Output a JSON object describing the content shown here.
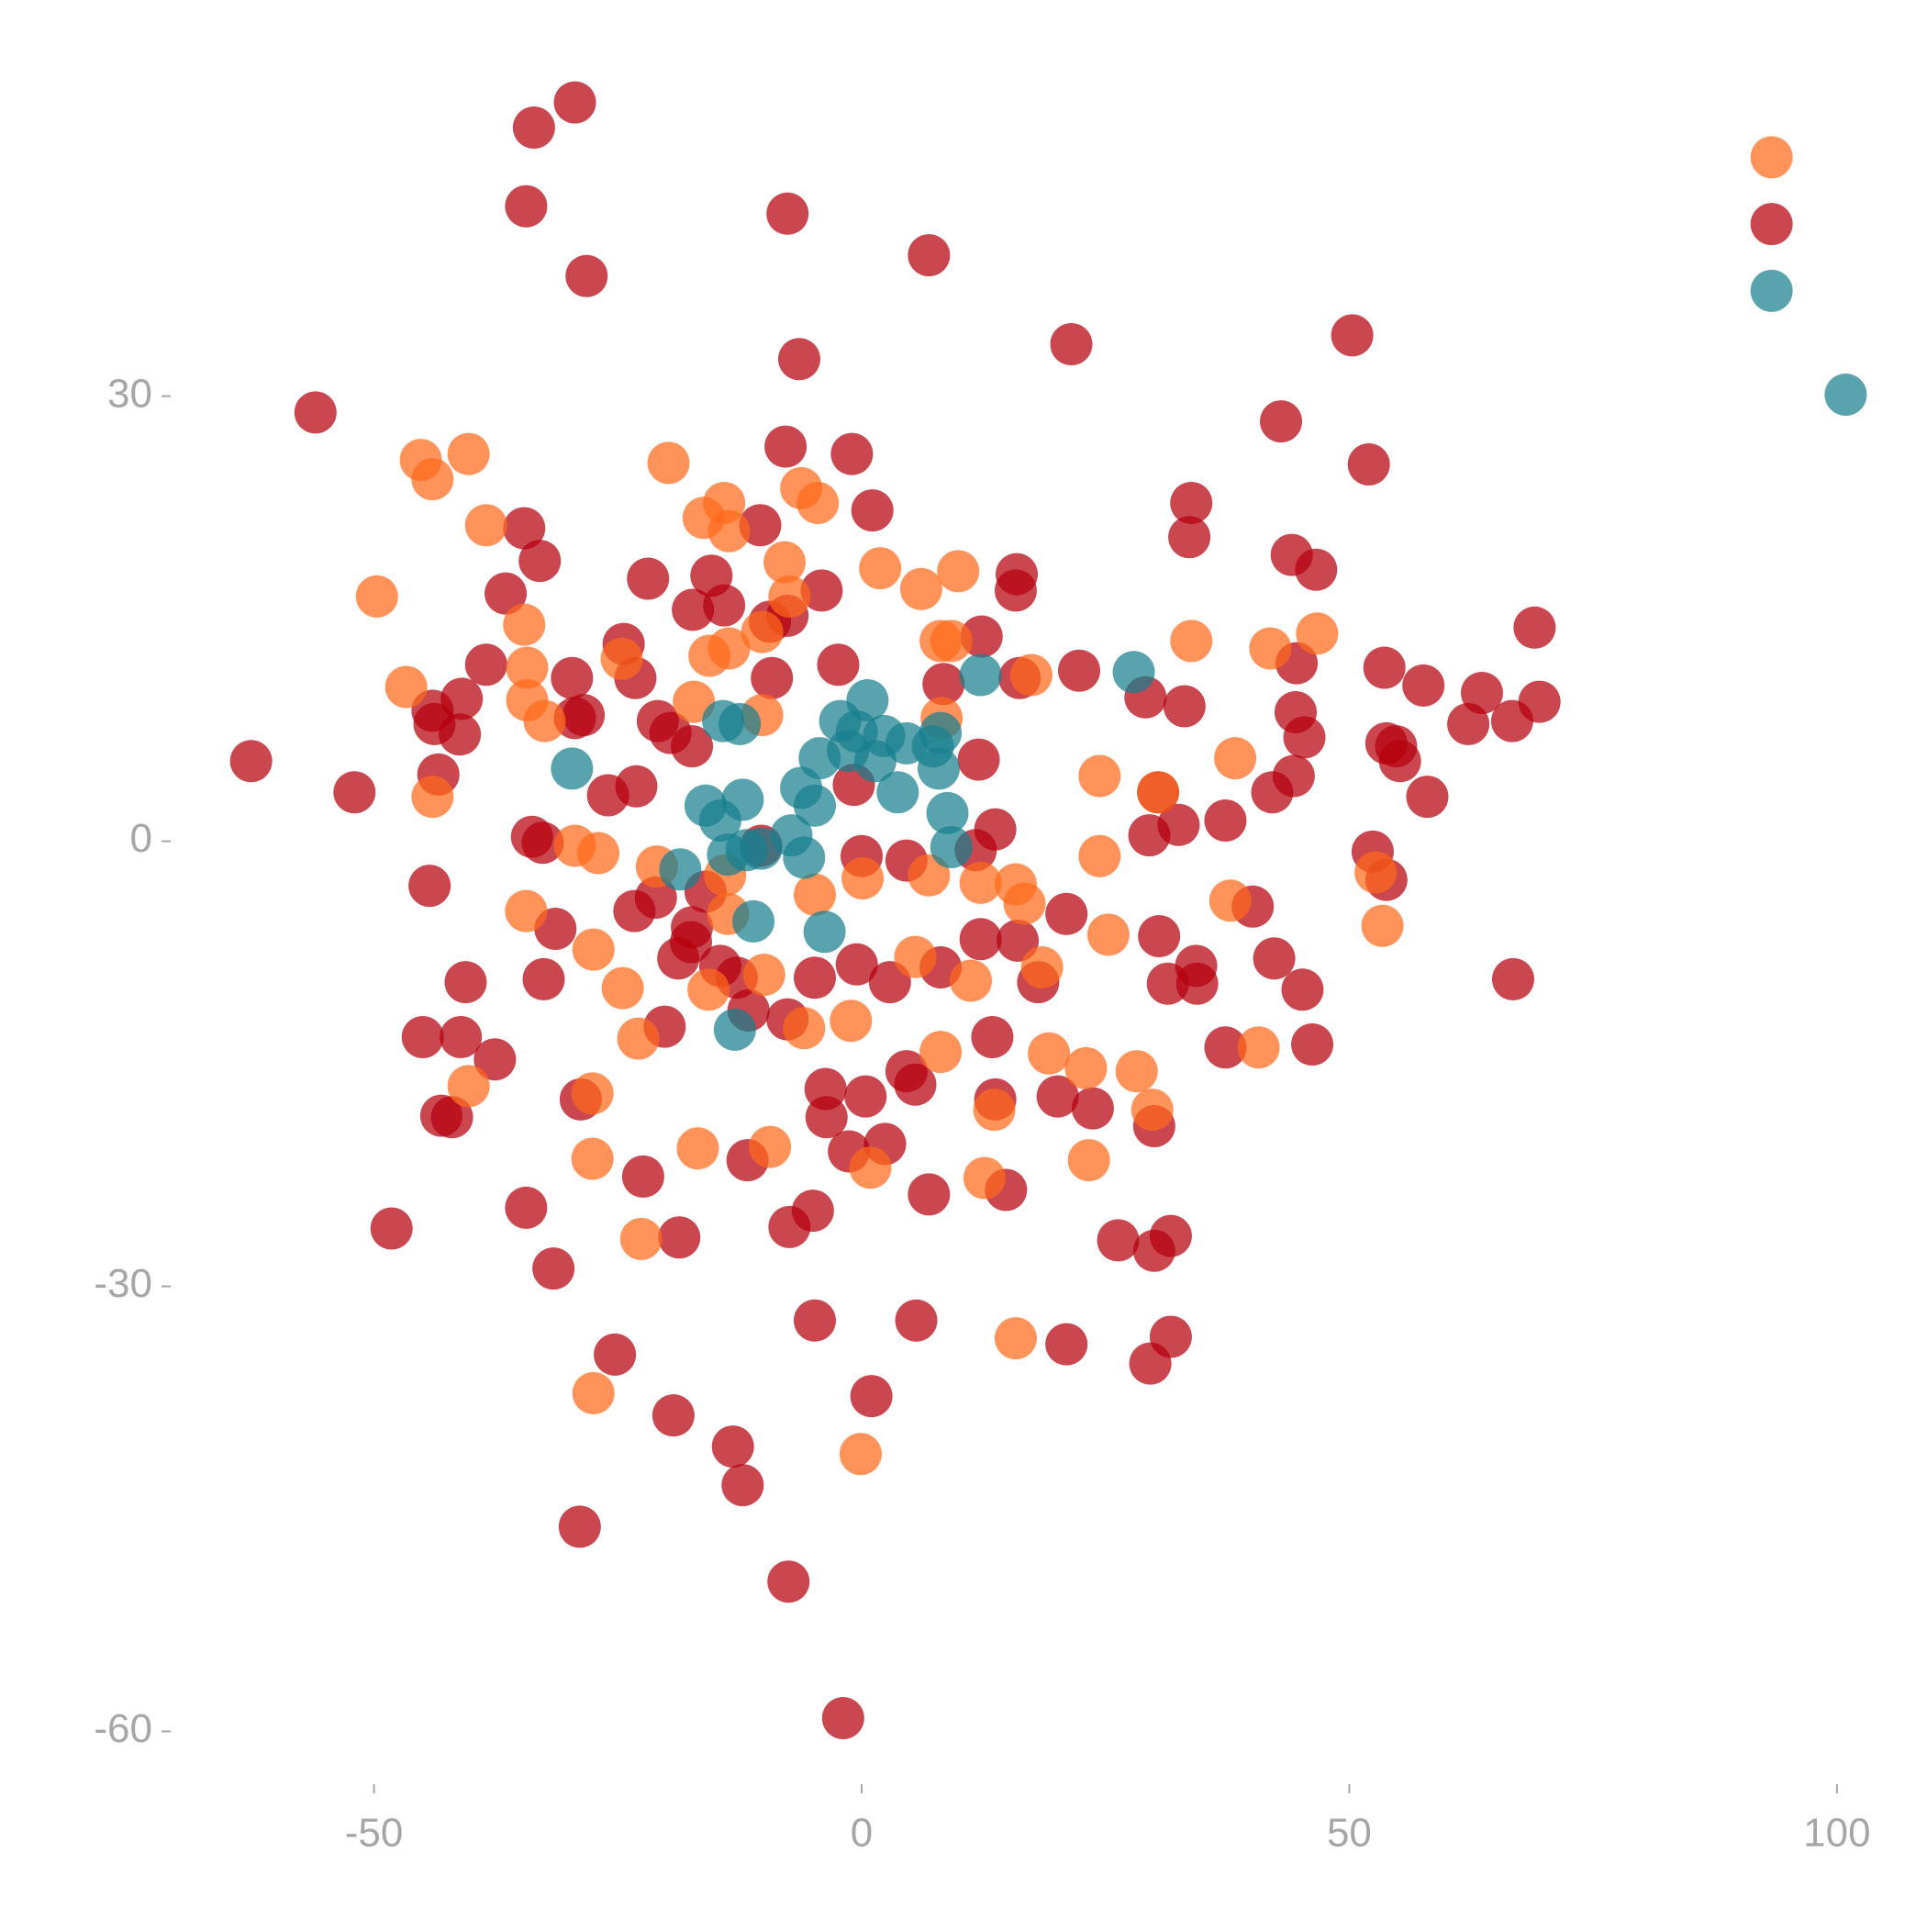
{
  "chart_data": {
    "type": "scatter",
    "xlim": [
      -70,
      105
    ],
    "ylim": [
      -63,
      52
    ],
    "xticks": [
      -50,
      0,
      50,
      100
    ],
    "yticks": [
      -60,
      -30,
      0,
      30
    ],
    "grid": false,
    "series": [
      {
        "color": "#b5000c",
        "x": [
          -29.4,
          -33.6,
          -34.4,
          -7.6,
          -28.2,
          6.9,
          21.5,
          -6.4,
          -56,
          50.3,
          43,
          52,
          93.3,
          -7.8,
          -1,
          1.1,
          33.8,
          33.6,
          -10.4,
          -34.6,
          -33,
          44.1,
          46.6,
          15.9,
          15.8,
          -21.9,
          -36.5,
          -15.4,
          -14.1,
          -17.3,
          -4.1,
          -7.6,
          -9.4,
          69,
          12.3,
          -24.4,
          -38.5,
          -2.4,
          -29.7,
          -23.2,
          -9.2,
          22.3,
          44.6,
          53.6,
          57.6,
          63.6,
          69.5,
          66.7,
          62.2,
          33.1,
          29.1,
          8.4,
          16.2,
          -44,
          -41,
          -43.8,
          -41.2,
          -29.4,
          -28.5,
          -20.9,
          -19.6,
          -17.4,
          44.5,
          45.4,
          53.8,
          54.8,
          55.2,
          12,
          58,
          44.3,
          42.1,
          -62.6,
          -52,
          -43.4,
          -26,
          -23.1,
          -0.8,
          30.4,
          32.5,
          29.5,
          37.3,
          13.7,
          11.7,
          52.4,
          53.8,
          -33.8,
          -32.7,
          0,
          4.6,
          -10.3,
          -44.3,
          -16,
          -21.1,
          -23.3,
          -17.4,
          -17.5,
          -18.8,
          -31.4,
          40.1,
          21,
          30.5,
          12.2,
          16,
          42.3,
          34.3,
          31.4,
          34.4,
          45.2,
          66.8,
          18.1,
          8.1,
          -0.5,
          2.9,
          -4.8,
          -14.5,
          -12.8,
          -40.6,
          -32.6,
          -45,
          -41.1,
          -37.6,
          -20.2,
          -11.6,
          -7.6,
          13.4,
          37.3,
          46.2,
          4.6,
          5.5,
          -3.7,
          0.4,
          13.7,
          20.1,
          23.7,
          30,
          -28.8,
          -43.1,
          -42,
          -3.6,
          2.4,
          -1.3,
          -11.7,
          -22.4,
          6.9,
          14.8,
          -34.4,
          -48.2,
          -5,
          -7.4,
          -18.7,
          26.3,
          30,
          31.7,
          -31.6,
          -4.8,
          5.6,
          21,
          31.7,
          29.6,
          -25.3,
          1,
          -19.3,
          -13.2,
          -12.2,
          -28.9,
          -7.5,
          -1.9
        ],
        "y": [
          49.8,
          48.1,
          42.8,
          42.3,
          38.1,
          39.5,
          33.5,
          32.5,
          28.9,
          34.1,
          28.3,
          25.4,
          41.6,
          26.6,
          26.1,
          22.3,
          22.8,
          20.5,
          21.3,
          21.1,
          18.9,
          19.3,
          18.3,
          18,
          16.9,
          17.7,
          16.7,
          17.9,
          15.9,
          15.6,
          16.9,
          15.2,
          14.8,
          14.4,
          13.8,
          13.3,
          11.9,
          11.9,
          11,
          11,
          11,
          11.5,
          12,
          11.7,
          10.5,
          10,
          9.4,
          8.1,
          7.9,
          9.1,
          9.7,
          10.6,
          11,
          8.8,
          9.6,
          7.9,
          7.2,
          8.3,
          8.5,
          8.1,
          7.3,
          6.4,
          8.7,
          7,
          6.6,
          6.4,
          5.4,
          5.5,
          3,
          4.4,
          3.3,
          5.4,
          3.3,
          4.5,
          3.1,
          3.7,
          3.8,
          3.3,
          1.1,
          0.4,
          1.4,
          0.8,
          -0.6,
          -0.7,
          -2.6,
          0.3,
          -0.1,
          -1,
          -1.3,
          -0.3,
          -3,
          -3.4,
          -3.8,
          -4.7,
          -5.8,
          -6.8,
          -7.9,
          -5.9,
          -4.4,
          -4.9,
          -6.4,
          -6.6,
          -6.7,
          -7.9,
          -8.4,
          -9.6,
          -9.6,
          -10,
          -9.3,
          -9.5,
          -8.5,
          -8.3,
          -9.5,
          -9.2,
          -8.4,
          -9.2,
          -9.5,
          -9.3,
          -13.2,
          -13.2,
          -14.7,
          -12.5,
          -11.4,
          -12,
          -13.2,
          -13.9,
          -13.7,
          -15.5,
          -16.4,
          -16.7,
          -17.2,
          -17.4,
          -17.2,
          -18,
          -19.2,
          -17.4,
          -18.5,
          -18.6,
          -18.6,
          -20.4,
          -20.9,
          -21.5,
          -22.6,
          -23.8,
          -23.5,
          -24.7,
          -26.1,
          -24.9,
          -26,
          -26.7,
          -26.9,
          -27.6,
          -26.6,
          -28.8,
          -32.3,
          -32.3,
          -33.9,
          -33.4,
          -35.2,
          -34.6,
          -37.4,
          -38.7,
          -40.8,
          -43.4,
          -46.2,
          -49.9,
          -59.1
        ]
      },
      {
        "color": "#ff6a1a",
        "x": [
          93.3,
          -40.3,
          -45.2,
          -44,
          -19.8,
          -6.2,
          -4.5,
          -14.1,
          -16.2,
          -13.6,
          -38.5,
          -49.7,
          -7.9,
          1.9,
          9.9,
          6.1,
          -34.6,
          -7.4,
          -10.2,
          8.1,
          9.2,
          33.8,
          41.9,
          46.7,
          -15.6,
          -13.6,
          -34.3,
          -24.6,
          -46.7,
          -34.3,
          -32.5,
          -17.2,
          -10.2,
          17.4,
          8.2,
          38.3,
          24.4,
          30.4,
          -44,
          -29.4,
          -27,
          24.4,
          6.9,
          0.1,
          12.2,
          15.8,
          -21,
          -14,
          52.7,
          -4.8,
          16.7,
          37.8,
          -34.4,
          -13.7,
          53.4,
          25.3,
          -27.5,
          5.5,
          11.2,
          18.5,
          -24.5,
          -10,
          -15.7,
          -1.1,
          -22.9,
          -5.9,
          8.1,
          40.7,
          19.2,
          23,
          28.2,
          29.8,
          -40.3,
          -27.6,
          13.6,
          -16.8,
          -9.4,
          -27.6,
          23.3,
          0.9,
          12.6,
          -22.6,
          15.8,
          -27.5,
          -0.1
        ],
        "y": [
          46.1,
          26.1,
          25.7,
          24.4,
          25.5,
          23.8,
          22.8,
          22.8,
          21.8,
          20.9,
          21.3,
          16.5,
          18.8,
          18.4,
          18.2,
          17,
          14.6,
          16.5,
          14.1,
          13.5,
          13.5,
          13.5,
          13,
          14,
          12.5,
          13,
          11.7,
          12.3,
          10.4,
          9.5,
          8.1,
          9.4,
          8.5,
          11.2,
          8.3,
          5.6,
          4.4,
          3.3,
          3,
          -0.3,
          -0.8,
          -1,
          -2.3,
          -2.5,
          -2.8,
          -2.9,
          -1.7,
          -2.3,
          -2.1,
          -3.6,
          -4.2,
          -4,
          -4.7,
          -4.9,
          -5.7,
          -6.3,
          -7.3,
          -7.8,
          -9.4,
          -8.5,
          -9.9,
          -9,
          -10,
          -12.1,
          -13.3,
          -12.6,
          -14.2,
          -13.9,
          -14.3,
          -15.3,
          -15.5,
          -18.1,
          -16.5,
          -17,
          -18.1,
          -20.7,
          -20.6,
          -21.4,
          -21.5,
          -22,
          -22.7,
          -26.8,
          -33.5,
          -37.2,
          -41.3
        ]
      },
      {
        "color": "#177f8f",
        "x": [
          93.3,
          100.9,
          27.9,
          12.2,
          0.6,
          -2.2,
          -0.5,
          2.3,
          4.6,
          7.3,
          8.1,
          -1.4,
          -4.3,
          1.4,
          7.9,
          3.7,
          -6.2,
          -14.2,
          -12.5,
          -29.7,
          -12.2,
          -16,
          -4.8,
          -14.5,
          8.8,
          9.2,
          -7.2,
          -10.3,
          -13.7,
          -11.8,
          -5.9,
          -18.6,
          -3.8,
          -11.1,
          -13
        ],
        "y": [
          37.1,
          30.1,
          11.4,
          11.2,
          9.5,
          8.1,
          7.4,
          7.1,
          6.6,
          6.4,
          7.3,
          6.1,
          5.6,
          5.4,
          4.9,
          3.3,
          3.6,
          8.1,
          7.9,
          4.9,
          2.8,
          2.4,
          2.4,
          1.4,
          1.9,
          -0.4,
          0.4,
          -0.5,
          -0.9,
          -0.6,
          -1.1,
          -1.9,
          -6.1,
          -5.4,
          -12.7
        ]
      }
    ]
  }
}
